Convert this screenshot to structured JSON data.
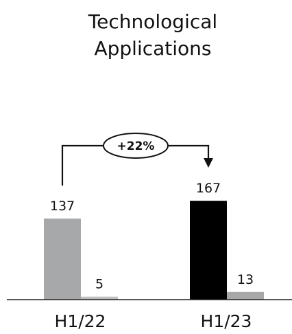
{
  "chart_data": {
    "type": "bar",
    "title": "Technological Applications",
    "title_lines": [
      "Technological",
      "Applications"
    ],
    "categories": [
      "H1/22",
      "H1/23"
    ],
    "series": [
      {
        "values": [
          137,
          167
        ],
        "colors": [
          "#a6a8aa",
          "#000000"
        ]
      },
      {
        "values": [
          5,
          13
        ],
        "colors": [
          "#bdbfc1",
          "#a6a8aa"
        ]
      }
    ],
    "value_labels": [
      [
        "137",
        "167"
      ],
      [
        "5",
        "13"
      ]
    ],
    "annotation": "+22%",
    "grid": false,
    "ylim": [
      0,
      240
    ]
  }
}
